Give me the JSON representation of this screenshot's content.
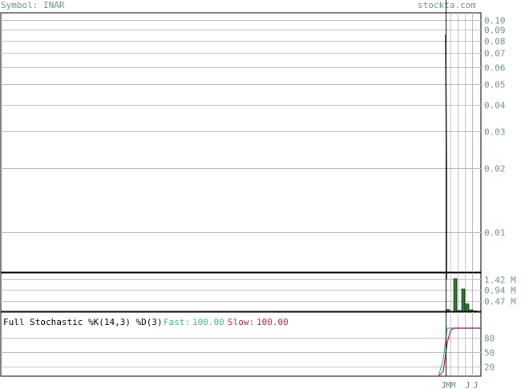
{
  "header": {
    "symbol_text": "Symbol: INAR",
    "site_text": "stockta.com"
  },
  "colors": {
    "text_gray": "#6f8f8f",
    "fast_line": "#3cb3a6",
    "slow_line": "#b0204a",
    "volume_bar": "#2f7a2f",
    "grid": "#bfbfbf",
    "frame": "#000000"
  },
  "chart_data": [
    {
      "type": "line",
      "panel": "price",
      "scale": "log",
      "y_ticks": [
        "0.10",
        "0.09",
        "0.08",
        "0.07",
        "0.06",
        "0.05",
        "0.04",
        "0.03",
        "0.02",
        "0.01"
      ],
      "y_tick_values": [
        0.1,
        0.09,
        0.08,
        0.07,
        0.06,
        0.05,
        0.04,
        0.03,
        0.02,
        0.01
      ],
      "series": [
        {
          "values": [
            0.085,
            0.02,
            0.006
          ]
        }
      ],
      "grid": true
    },
    {
      "type": "bar",
      "panel": "volume",
      "y_ticks": [
        "1.42 M",
        "0.94 M",
        "0.47 M"
      ],
      "y_tick_values": [
        1.42,
        0.94,
        0.47
      ],
      "ylim": [
        0,
        1.7
      ],
      "values": [
        0.08,
        1.45,
        0.04,
        0.99,
        0.33,
        0.07,
        0.02
      ],
      "grid": true
    },
    {
      "type": "line",
      "panel": "stochastic",
      "title": "Full Stochastic %K(14,3) %D(3)",
      "legend": [
        {
          "label": "Fast:",
          "value": "100.00"
        },
        {
          "label": "Slow:",
          "value": "100.00"
        }
      ],
      "y_ticks": [
        "80",
        "50",
        "20"
      ],
      "y_tick_values": [
        80,
        50,
        20
      ],
      "ylim": [
        0,
        100
      ],
      "series": [
        {
          "name": "Fast",
          "values": [
            -15,
            35,
            100,
            100,
            100,
            100,
            100,
            100,
            100
          ]
        },
        {
          "name": "Slow",
          "values": [
            -30,
            10,
            70,
            95,
            100,
            100,
            100,
            100,
            100
          ]
        }
      ],
      "x_ticks": [
        "J",
        "M",
        "M",
        "J",
        "J"
      ],
      "grid": true
    }
  ]
}
